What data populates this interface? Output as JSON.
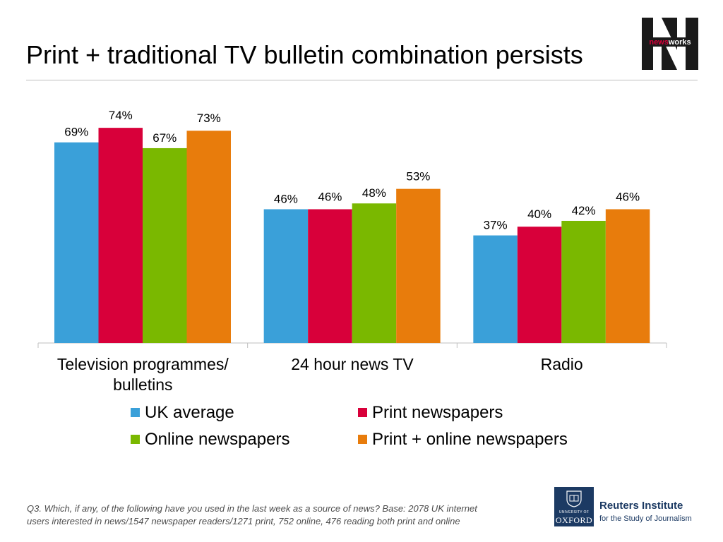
{
  "header": {
    "title": "Print + traditional TV bulletin combination persists",
    "logo_text_news": "news",
    "logo_text_works": "works"
  },
  "chart_data": {
    "type": "bar",
    "title": "",
    "xlabel": "",
    "ylabel": "",
    "ylim": [
      0,
      80
    ],
    "grid": false,
    "legend_position": "bottom",
    "categories": [
      "Television programmes/ bulletins",
      "24 hour news TV",
      "Radio"
    ],
    "category_lines": [
      [
        "Television programmes/",
        "bulletins"
      ],
      [
        "24 hour news TV"
      ],
      [
        "Radio"
      ]
    ],
    "series": [
      {
        "name": "UK average",
        "color": "#3aa0d9",
        "values": [
          69,
          46,
          37
        ],
        "labels": [
          "69%",
          "46%",
          "37%"
        ]
      },
      {
        "name": "Print newspapers",
        "color": "#d8003a",
        "values": [
          74,
          46,
          40
        ],
        "labels": [
          "74%",
          "46%",
          "40%"
        ]
      },
      {
        "name": "Online newspapers",
        "color": "#7ab800",
        "values": [
          67,
          48,
          42
        ],
        "labels": [
          "67%",
          "48%",
          "42%"
        ]
      },
      {
        "name": "Print + online newspapers",
        "color": "#e87c0c",
        "values": [
          73,
          53,
          46
        ],
        "labels": [
          "73%",
          "53%",
          "46%"
        ]
      }
    ]
  },
  "legend": {
    "items": [
      {
        "label": "UK average",
        "color": "#3aa0d9"
      },
      {
        "label": "Print newspapers",
        "color": "#d8003a"
      },
      {
        "label": "Online newspapers",
        "color": "#7ab800"
      },
      {
        "label": "Print + online newspapers",
        "color": "#e87c0c"
      }
    ]
  },
  "footer": {
    "footnote_line1": "Q3. Which, if any, of the following have you used in the last week as a source of news? Base: 2078 UK  internet",
    "footnote_line2": "users interested in news/1547 newspaper readers/1271 print, 752  online, 476 reading both print and online",
    "oxford_small": "UNIVERSITY OF",
    "oxford_big": "OXFORD",
    "institute_name": "Reuters Institute",
    "institute_sub": "for the Study of Journalism"
  },
  "colors": {
    "brand_navy": "#1c3a63",
    "axis": "#bfbfbf"
  },
  "icons": [
    "newsworks-logo",
    "oxford-crest-icon"
  ]
}
